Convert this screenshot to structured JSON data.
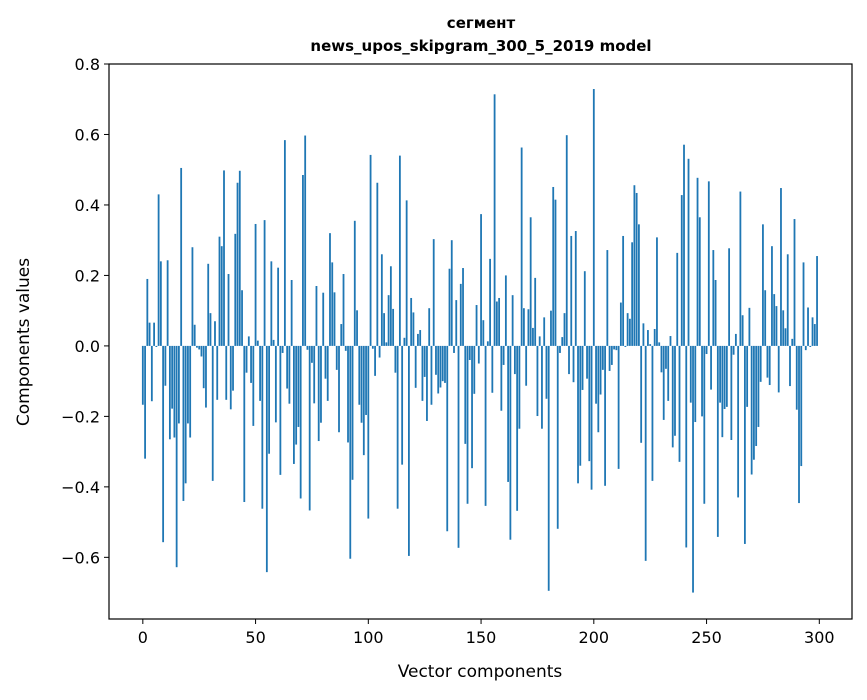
{
  "chart_data": {
    "type": "bar",
    "title": [
      "сегмент",
      "news_upos_skipgram_300_5_2019 model"
    ],
    "xlabel": "Vector components",
    "ylabel": "Components values",
    "xlim": [
      -15,
      314.5
    ],
    "ylim": [
      -0.775,
      0.8
    ],
    "xticks": [
      0,
      50,
      100,
      150,
      200,
      250,
      300
    ],
    "xtick_labels": [
      "0",
      "50",
      "100",
      "150",
      "200",
      "250",
      "300"
    ],
    "yticks": [
      -0.6,
      -0.4,
      -0.2,
      0.0,
      0.2,
      0.4,
      0.6,
      0.8
    ],
    "ytick_labels": [
      "−0.6",
      "−0.4",
      "−0.2",
      "0.0",
      "0.2",
      "0.4",
      "0.6",
      "0.8"
    ],
    "grid": false,
    "bar_color": "#1f77b4",
    "bar_width": 0.8,
    "values": [
      -0.167,
      -0.32,
      0.19,
      0.066,
      -0.157,
      0.066,
      -0.003,
      0.43,
      0.24,
      -0.557,
      -0.113,
      0.243,
      -0.265,
      -0.178,
      -0.26,
      -0.628,
      -0.22,
      0.505,
      -0.44,
      -0.39,
      -0.22,
      -0.26,
      0.28,
      0.06,
      -0.005,
      -0.01,
      -0.03,
      -0.12,
      -0.175,
      0.233,
      0.093,
      -0.383,
      0.07,
      -0.153,
      0.31,
      0.283,
      0.498,
      -0.153,
      0.204,
      -0.18,
      -0.127,
      0.318,
      0.463,
      0.497,
      0.158,
      -0.443,
      -0.076,
      0.027,
      -0.105,
      -0.227,
      0.346,
      0.015,
      -0.156,
      -0.462,
      0.357,
      -0.642,
      -0.306,
      0.24,
      0.017,
      -0.217,
      0.222,
      -0.366,
      -0.02,
      0.584,
      -0.121,
      -0.164,
      0.187,
      -0.335,
      -0.28,
      -0.23,
      -0.433,
      0.485,
      0.597,
      -0.011,
      -0.467,
      -0.048,
      -0.163,
      0.17,
      -0.27,
      -0.218,
      0.151,
      -0.093,
      -0.156,
      0.32,
      0.237,
      0.152,
      -0.068,
      -0.245,
      0.062,
      0.204,
      -0.014,
      -0.274,
      -0.604,
      -0.38,
      0.355,
      0.101,
      -0.167,
      -0.218,
      -0.31,
      -0.196,
      -0.49,
      0.542,
      -0.008,
      -0.085,
      0.463,
      -0.033,
      0.26,
      0.093,
      0.01,
      0.144,
      0.226,
      0.105,
      -0.076,
      -0.462,
      0.54,
      -0.337,
      0.023,
      0.413,
      -0.596,
      0.136,
      0.095,
      -0.119,
      0.034,
      0.045,
      -0.156,
      -0.088,
      -0.213,
      0.107,
      -0.167,
      0.303,
      -0.082,
      -0.135,
      -0.118,
      -0.1,
      -0.105,
      -0.526,
      0.219,
      0.3,
      -0.02,
      0.13,
      -0.573,
      0.176,
      0.221,
      -0.278,
      -0.448,
      -0.04,
      -0.347,
      -0.136,
      0.116,
      -0.05,
      0.374,
      0.073,
      -0.454,
      0.013,
      0.247,
      -0.133,
      0.714,
      0.126,
      0.136,
      -0.184,
      -0.054,
      0.2,
      -0.386,
      -0.55,
      0.144,
      -0.08,
      -0.468,
      -0.235,
      0.563,
      0.107,
      -0.113,
      0.104,
      0.365,
      0.051,
      0.193,
      -0.199,
      0.027,
      -0.235,
      0.081,
      -0.15,
      -0.695,
      0.1,
      0.451,
      0.415,
      -0.519,
      -0.02,
      0.025,
      0.093,
      0.598,
      -0.08,
      0.312,
      -0.103,
      0.326,
      -0.39,
      -0.34,
      -0.125,
      0.212,
      -0.093,
      -0.327,
      -0.408,
      0.729,
      -0.164,
      -0.245,
      -0.138,
      -0.068,
      -0.397,
      0.272,
      -0.071,
      -0.054,
      -0.01,
      -0.012,
      -0.349,
      0.123,
      0.312,
      -0.003,
      0.093,
      0.077,
      0.294,
      0.456,
      0.434,
      0.345,
      -0.275,
      0.064,
      -0.61,
      0.045,
      0.005,
      -0.383,
      0.048,
      0.308,
      0.01,
      -0.075,
      -0.21,
      -0.065,
      -0.156,
      0.028,
      -0.288,
      -0.255,
      0.264,
      -0.329,
      0.428,
      0.571,
      -0.572,
      0.531,
      -0.161,
      -0.7,
      -0.216,
      0.477,
      0.365,
      -0.2,
      -0.448,
      -0.023,
      0.467,
      -0.124,
      0.272,
      0.187,
      -0.542,
      -0.161,
      -0.259,
      -0.179,
      -0.173,
      0.277,
      -0.267,
      -0.025,
      0.034,
      -0.43,
      0.438,
      0.087,
      -0.562,
      -0.173,
      0.108,
      -0.365,
      -0.323,
      -0.284,
      -0.23,
      -0.102,
      0.345,
      0.158,
      -0.09,
      -0.111,
      0.283,
      0.147,
      0.113,
      -0.132,
      0.448,
      0.101,
      0.05,
      0.26,
      -0.114,
      0.02,
      0.36,
      -0.181,
      -0.446,
      -0.341,
      0.237,
      -0.012,
      0.109,
      -0.003,
      0.081,
      0.062,
      0.255
    ]
  }
}
